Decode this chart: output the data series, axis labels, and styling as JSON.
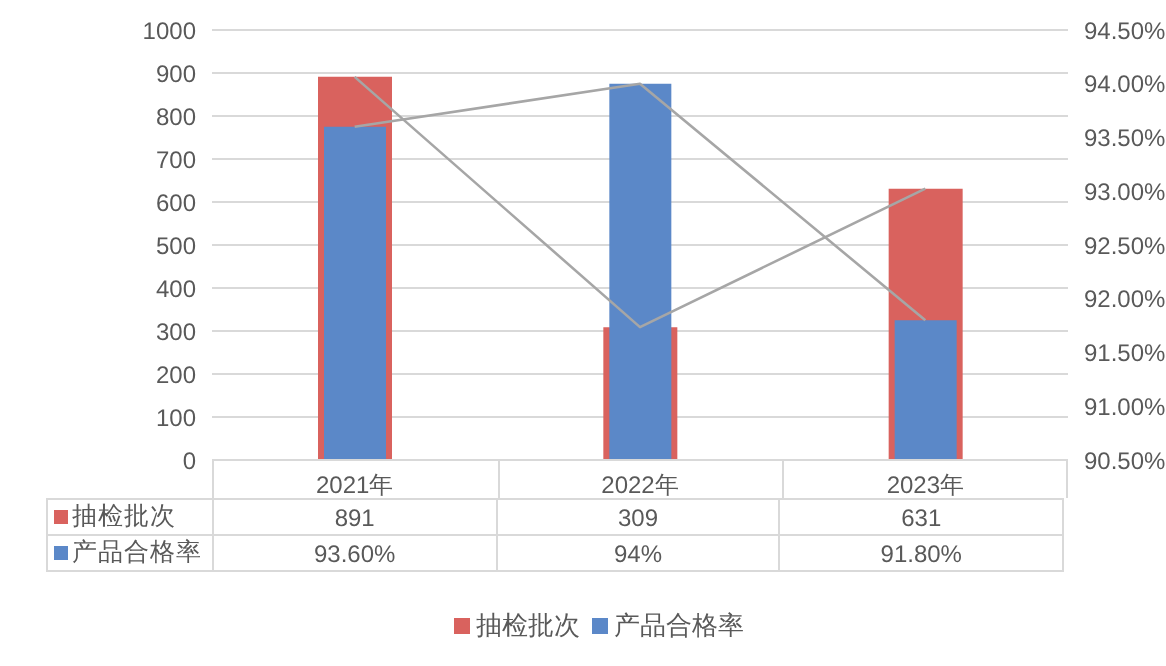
{
  "chart_data": {
    "type": "bar",
    "categories": [
      "2021年",
      "2022年",
      "2023年"
    ],
    "series": [
      {
        "name": "抽检批次",
        "color": "#d9625e",
        "values": [
          891,
          309,
          631
        ],
        "value_labels": [
          "891",
          "309",
          "631"
        ]
      },
      {
        "name": "产品合格率",
        "color": "#5b88c8",
        "values": [
          93.6,
          94,
          91.8
        ],
        "axis": "y2",
        "value_labels": [
          "93.60%",
          "94%",
          "91.80%"
        ]
      },
      {
        "type": "line",
        "color": "#a6a6a6",
        "values": [
          891,
          309,
          631
        ]
      },
      {
        "type": "line",
        "color": "#a6a6a6",
        "values": [
          93.6,
          94,
          91.8
        ],
        "axis": "y2"
      }
    ],
    "ylim": [
      0,
      1000
    ],
    "yticks": [
      0,
      100,
      200,
      300,
      400,
      500,
      600,
      700,
      800,
      900,
      1000
    ],
    "y2lim": [
      90.5,
      94.5
    ],
    "y2ticks": [
      {
        "value": 90.5,
        "label": "90.50%"
      },
      {
        "value": 91,
        "label": "91.00%"
      },
      {
        "value": 91.5,
        "label": "91.50%"
      },
      {
        "value": 92,
        "label": "92.00%"
      },
      {
        "value": 92.5,
        "label": "92.50%"
      },
      {
        "value": 93,
        "label": "93.00%"
      },
      {
        "value": 93.5,
        "label": "93.50%"
      },
      {
        "value": 94,
        "label": "94.00%"
      },
      {
        "value": 94.5,
        "label": "94.50%"
      }
    ],
    "grid": "y",
    "legend": "bottom",
    "marker": "none"
  }
}
